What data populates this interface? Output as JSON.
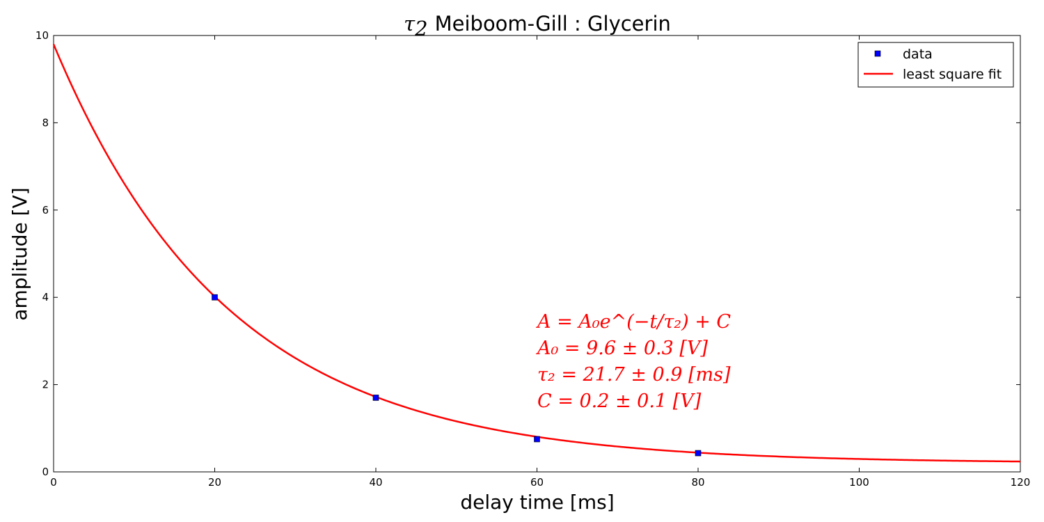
{
  "chart_data": {
    "type": "scatter",
    "title_symbol": "τ",
    "title_symbol_sub": "2",
    "title": "Meiboom-Gill : Glycerin",
    "xlabel": "delay time [ms]",
    "ylabel": "amplitude [V]",
    "xlim": [
      0,
      120
    ],
    "ylim": [
      0,
      10
    ],
    "xticks": [
      "0",
      "20",
      "40",
      "60",
      "80",
      "100",
      "120"
    ],
    "yticks": [
      "0",
      "2",
      "4",
      "6",
      "8",
      "10"
    ],
    "grid": false,
    "legend_position": "top-right",
    "series": [
      {
        "name": "data",
        "kind": "markers",
        "marker": "square",
        "color": "#0000ff",
        "x": [
          20,
          40,
          60,
          80
        ],
        "y": [
          4.0,
          1.7,
          0.75,
          0.43
        ]
      },
      {
        "name": "least square fit",
        "kind": "line",
        "color": "#ff0000",
        "function": "exponential decay",
        "A0": 9.6,
        "tau2": 21.7,
        "C": 0.2
      }
    ],
    "annotation": {
      "color": "#ff0000",
      "lines": [
        "A = A₀e^(−t/τ₂) + C",
        "A₀ = 9.6 ± 0.3 [V]",
        "τ₂ = 21.7 ± 0.9 [ms]",
        "C = 0.2 ± 0.1 [V]"
      ]
    }
  }
}
